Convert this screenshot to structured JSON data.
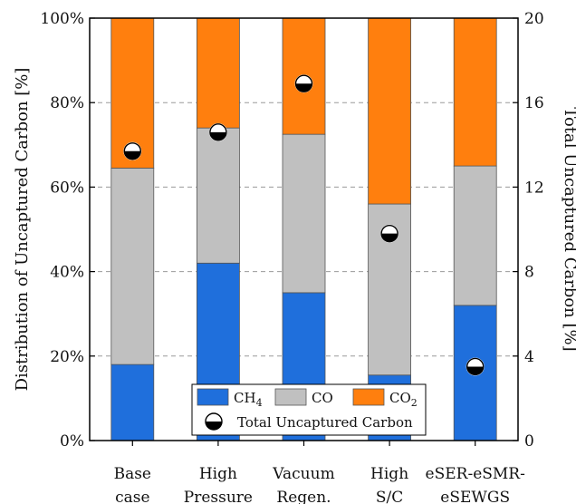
{
  "chart_data": {
    "type": "bar",
    "stacked": true,
    "categories": [
      [
        "Base",
        "case"
      ],
      [
        "High",
        "Pressure"
      ],
      [
        "Vacuum",
        "Regen."
      ],
      [
        "High",
        "S/C"
      ],
      [
        "eSER-eSMR-",
        "eSEWGS"
      ]
    ],
    "series": [
      {
        "name": "CH",
        "sub": "4",
        "color": "#1f6fdc",
        "values": [
          18,
          42,
          35,
          15.5,
          32
        ]
      },
      {
        "name": "CO",
        "sub": "",
        "color": "#c0c0c0",
        "values": [
          46.5,
          32,
          37.5,
          40.5,
          33
        ]
      },
      {
        "name": "CO",
        "sub": "2",
        "color": "#ff7f0e",
        "values": [
          35.5,
          26,
          27.5,
          44,
          35
        ]
      }
    ],
    "marker_series": {
      "name": "Total Uncaptured Carbon",
      "axis": "right",
      "values": [
        13.7,
        14.6,
        16.9,
        9.8,
        3.5
      ]
    },
    "ylabel_left": "Distribution of Uncaptured Carbon [%]",
    "ylabel_right": "Total Uncaptured Carbon [%]",
    "ylim_left": [
      0,
      100
    ],
    "ylim_right": [
      0,
      20
    ],
    "left_ticks": [
      "0%",
      "20%",
      "40%",
      "60%",
      "80%",
      "100%"
    ],
    "left_tick_values": [
      0,
      20,
      40,
      60,
      80,
      100
    ],
    "right_ticks": [
      "0",
      "4",
      "8",
      "12",
      "16",
      "20"
    ],
    "right_tick_values": [
      0,
      4,
      8,
      12,
      16,
      20
    ],
    "grid": "horizontal dashed",
    "legend_position": "bottom-center"
  }
}
